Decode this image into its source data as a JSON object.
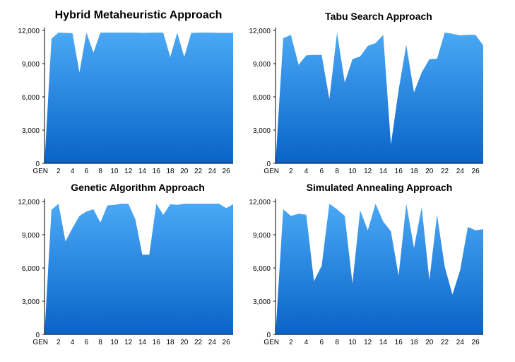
{
  "colors": {
    "area_top": "#4aa8f5",
    "area_bottom": "#0a63c7",
    "axis": "#000000"
  },
  "chart_data": [
    {
      "type": "area",
      "title": "Hybrid Metaheuristic Approach",
      "x": [
        0,
        1,
        2,
        3,
        4,
        5,
        6,
        7,
        8,
        9,
        10,
        11,
        12,
        13,
        14,
        15,
        16,
        17,
        18,
        19,
        20,
        21,
        22,
        23,
        24,
        25,
        26,
        27
      ],
      "x_tick_labels": [
        "GEN",
        "2",
        "4",
        "6",
        "8",
        "10",
        "12",
        "14",
        "16",
        "18",
        "20",
        "22",
        "24",
        "26"
      ],
      "y_ticks": [
        "0",
        "3,000",
        "6,000",
        "9,000",
        "12,000"
      ],
      "ylim": [
        0,
        12000
      ],
      "values": [
        0,
        11250,
        11800,
        11780,
        11750,
        8200,
        11800,
        10000,
        11800,
        11800,
        11800,
        11800,
        11800,
        11800,
        11780,
        11790,
        11800,
        11800,
        9600,
        11800,
        9600,
        11780,
        11790,
        11800,
        11790,
        11780,
        11780,
        11780
      ],
      "grid": false
    },
    {
      "type": "area",
      "title": "Tabu Search Approach",
      "x": [
        0,
        1,
        2,
        3,
        4,
        5,
        6,
        7,
        8,
        9,
        10,
        11,
        12,
        13,
        14,
        15,
        16,
        17,
        18,
        19,
        20,
        21,
        22,
        23,
        24,
        25,
        26,
        27
      ],
      "x_tick_labels": [
        "GEN",
        "2",
        "4",
        "6",
        "8",
        "10",
        "12",
        "14",
        "16",
        "18",
        "20",
        "22",
        "24",
        "26"
      ],
      "y_ticks": [
        "0",
        "3,000",
        "6,000",
        "9,000",
        "12,000"
      ],
      "ylim": [
        0,
        12000
      ],
      "values": [
        0,
        11300,
        11600,
        8900,
        9750,
        9780,
        9780,
        5800,
        11800,
        7300,
        9400,
        9650,
        10600,
        10850,
        11600,
        1700,
        6600,
        10700,
        6400,
        8200,
        9400,
        9450,
        11800,
        11700,
        11550,
        11600,
        11600,
        10650
      ],
      "grid": false
    },
    {
      "type": "area",
      "title": "Genetic Algorithm Approach",
      "x": [
        0,
        1,
        2,
        3,
        4,
        5,
        6,
        7,
        8,
        9,
        10,
        11,
        12,
        13,
        14,
        15,
        16,
        17,
        18,
        19,
        20,
        21,
        22,
        23,
        24,
        25,
        26,
        27
      ],
      "x_tick_labels": [
        "GEN",
        "2",
        "4",
        "6",
        "8",
        "10",
        "12",
        "14",
        "16",
        "18",
        "20",
        "22",
        "24",
        "26"
      ],
      "y_ticks": [
        "0",
        "3,000",
        "6,000",
        "9,000",
        "12,000"
      ],
      "ylim": [
        0,
        12000
      ],
      "values": [
        0,
        11250,
        11800,
        8400,
        9600,
        10700,
        11100,
        11300,
        10100,
        11650,
        11700,
        11800,
        11800,
        10400,
        7200,
        7200,
        11800,
        10800,
        11750,
        11700,
        11800,
        11800,
        11800,
        11800,
        11800,
        11800,
        11400,
        11750
      ],
      "grid": false
    },
    {
      "type": "area",
      "title": "Simulated Annealing Approach",
      "x": [
        0,
        1,
        2,
        3,
        4,
        5,
        6,
        7,
        8,
        9,
        10,
        11,
        12,
        13,
        14,
        15,
        16,
        17,
        18,
        19,
        20,
        21,
        22,
        23,
        24,
        25,
        26,
        27
      ],
      "x_tick_labels": [
        "GEN",
        "2",
        "4",
        "6",
        "8",
        "10",
        "12",
        "14",
        "16",
        "18",
        "20",
        "22",
        "24",
        "26"
      ],
      "y_ticks": [
        "0",
        "3,000",
        "6,000",
        "9,000",
        "12,000"
      ],
      "ylim": [
        0,
        12000
      ],
      "values": [
        0,
        11300,
        10700,
        10900,
        10800,
        4800,
        6200,
        11800,
        11300,
        10700,
        4600,
        11200,
        9400,
        11800,
        10200,
        9300,
        5300,
        11800,
        7800,
        11500,
        4900,
        10800,
        6100,
        3600,
        5800,
        9700,
        9400,
        9500
      ],
      "grid": false
    }
  ]
}
